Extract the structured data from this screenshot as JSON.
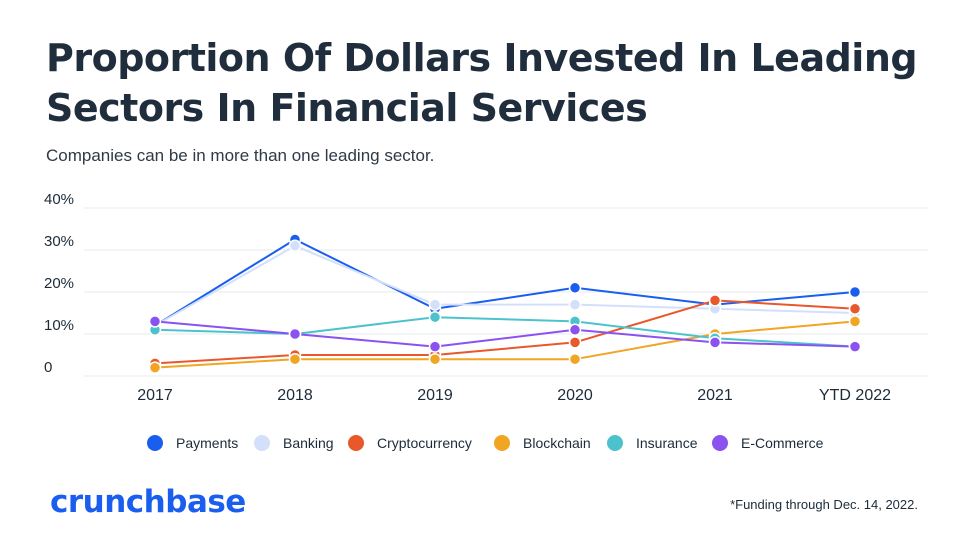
{
  "title": "Proportion Of Dollars Invested In Leading Sectors In Financial Services",
  "subtitle": "Companies can be in more than one leading sector.",
  "footnote": "*Funding through Dec. 14, 2022.",
  "brand": "crunchbase",
  "colors": {
    "grid": "#e6e9ee",
    "text": "#1c2b3a",
    "brand": "#1a5ef0"
  },
  "chart_data": {
    "type": "line",
    "categories": [
      "2017",
      "2018",
      "2019",
      "2020",
      "2021",
      "YTD 2022"
    ],
    "ylim": [
      0,
      40
    ],
    "yticks": [
      0,
      10,
      20,
      30,
      40
    ],
    "ytick_labels": [
      "0",
      "10%",
      "20%",
      "30%",
      "40%"
    ],
    "legend_position": "bottom",
    "grid": true,
    "series": [
      {
        "name": "Payments",
        "color": "#1a5ef0",
        "values": [
          12,
          32.5,
          16,
          21,
          17,
          20
        ]
      },
      {
        "name": "Banking",
        "color": "#d3e0fb",
        "values": [
          12,
          31,
          17,
          17,
          16,
          15
        ]
      },
      {
        "name": "Cryptocurrency",
        "color": "#e8582a",
        "values": [
          3,
          5,
          5,
          8,
          18,
          16
        ]
      },
      {
        "name": "Blockchain",
        "color": "#f0a523",
        "values": [
          2,
          4,
          4,
          4,
          10,
          13
        ]
      },
      {
        "name": "Insurance",
        "color": "#4cc3cc",
        "values": [
          11,
          10,
          14,
          13,
          9,
          7
        ]
      },
      {
        "name": "E-Commerce",
        "color": "#8a52ee",
        "values": [
          13,
          10,
          7,
          11,
          8,
          7
        ]
      }
    ]
  }
}
